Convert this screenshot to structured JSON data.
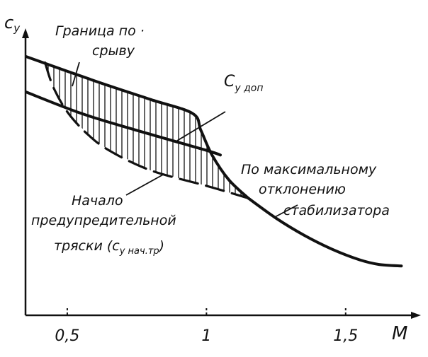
{
  "chart_data": {
    "type": "line",
    "xlabel": "M",
    "ylabel": "c_y",
    "ylabel_main": "c",
    "ylabel_sub": "y",
    "x_ticks": [
      {
        "value": 0.5,
        "label": "0,5"
      },
      {
        "value": 1,
        "label": "1"
      },
      {
        "value": 1.5,
        "label": "1,5"
      }
    ],
    "xlim": [
      0.35,
      1.75
    ],
    "ylim": [
      0,
      1
    ],
    "series": [
      {
        "name": "Граница по срыву",
        "style": "solid-thick",
        "points": [
          [
            0.35,
            0.84
          ],
          [
            0.6,
            0.76
          ],
          [
            0.8,
            0.7
          ],
          [
            0.95,
            0.655
          ],
          [
            0.98,
            0.6
          ],
          [
            1.02,
            0.52
          ],
          [
            1.08,
            0.44
          ],
          [
            1.15,
            0.38
          ]
        ]
      },
      {
        "name": "c_y доп",
        "style": "solid-thick",
        "points": [
          [
            0.35,
            0.725
          ],
          [
            0.55,
            0.655
          ],
          [
            0.75,
            0.6
          ],
          [
            1.0,
            0.535
          ],
          [
            1.05,
            0.52
          ]
        ]
      },
      {
        "name": "По максимальному отклонению стабилизатора",
        "style": "solid-thick",
        "points": [
          [
            1.15,
            0.38
          ],
          [
            1.25,
            0.315
          ],
          [
            1.35,
            0.26
          ],
          [
            1.45,
            0.215
          ],
          [
            1.55,
            0.18
          ],
          [
            1.62,
            0.165
          ],
          [
            1.7,
            0.16
          ]
        ]
      },
      {
        "name": "Начало предупредительной тряски (c_y нач.тр)",
        "style": "dashed",
        "points": [
          [
            0.42,
            0.82
          ],
          [
            0.45,
            0.74
          ],
          [
            0.5,
            0.66
          ],
          [
            0.57,
            0.59
          ],
          [
            0.65,
            0.535
          ],
          [
            0.8,
            0.47
          ],
          [
            1.0,
            0.42
          ],
          [
            1.15,
            0.38
          ]
        ]
      }
    ],
    "hatched_region": "between Граница по срыву and Начало предупредительной тряски",
    "annotations": [
      {
        "id": "stall",
        "lines": [
          "Граница по ·",
          "срыву"
        ]
      },
      {
        "id": "cydop_main",
        "text": "C"
      },
      {
        "id": "cydop_sub",
        "text": "y доп"
      },
      {
        "id": "stab",
        "lines": [
          "По максимальному",
          "отклонению",
          "стабилизатора"
        ]
      },
      {
        "id": "shake",
        "lines": [
          "Начало",
          "предупредительной",
          "тряски (c"
        ],
        "sub": "y нач.тр",
        "tail": ")"
      }
    ]
  }
}
